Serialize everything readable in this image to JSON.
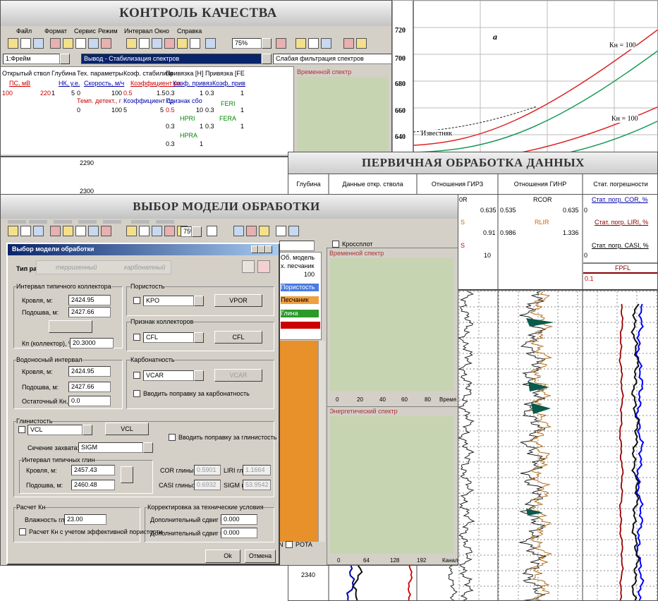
{
  "quality_control": {
    "title": "КОНТРОЛЬ КАЧЕСТВА",
    "menu": [
      "Файл",
      "Формат",
      "Сервис",
      "Режим",
      "Интервал",
      "Окно",
      "Справка"
    ],
    "zoom": "75%",
    "frame": "1:Фрейм",
    "output": "Вывод - Стабилизация спектров",
    "filter": "Слабая фильтрация спектров",
    "columns": [
      "Открытый ствол",
      "Глубина",
      "Тех. параметры",
      "Коэф. стабилиза",
      "Привязка [Н]",
      "Привязка [FE"
    ],
    "units": [
      "ПС, мВ",
      "НК, у.е.",
      "Скорость, м/ч",
      "Коэффициент ра",
      "Коэф. привяз",
      "Коэф. прив"
    ],
    "cells": [
      "100",
      "220",
      "1",
      "5",
      "0",
      "100",
      "0.5",
      "1.5",
      "0.3",
      "1",
      "0.3",
      "1",
      "Темп. детект., г",
      "Коэффициент сд",
      "Признак сбо",
      "FERI",
      "0",
      "100",
      "5",
      "5",
      "0.5",
      "10",
      "0.3",
      "1",
      "HPRI",
      "FERA",
      "0.3",
      "1",
      "0.3",
      "1",
      "HPRA",
      "0.3",
      "1"
    ],
    "spectrum_title": "Временной спектр",
    "depths": [
      "2290",
      "2300"
    ]
  },
  "reference_chart": {
    "yticks": [
      "720",
      "700",
      "680",
      "660",
      "640"
    ],
    "panel_label": "а",
    "curve_labels": [
      "Кн = 100",
      "Кн = 100"
    ],
    "lithology": "Известняк"
  },
  "primary_processing": {
    "title": "ПЕРВИЧНАЯ ОБРАБОТКА ДАННЫХ",
    "columns": [
      "Глубина",
      "Данные откр. ствола",
      "Отношения ГИРЗ",
      "Отношения ГИНР",
      "Стат. погрешности"
    ],
    "cells": [
      "0R",
      "RCOR",
      "Стат. погр. COR, %",
      "0.635",
      "0.535",
      "0.635",
      "0",
      "S",
      "RLIR",
      "Стат. погр. LIRI, %",
      "0.91",
      "0.986",
      "1.336",
      "S",
      "Стат. погр. CASI, %",
      "0",
      "10",
      "FPFL",
      "0.1"
    ],
    "depth": "2340"
  },
  "model_selection": {
    "title": "ВЫБОР МОДЕЛИ ОБРАБОТКИ",
    "zoom": "75%",
    "crossplot": "Кроссплот",
    "dialog": {
      "title": "Выбор модели обработки",
      "section_type": "Тип разреза:",
      "type_options": [
        "терригенный",
        "карбонатный"
      ],
      "collector": {
        "title": "Интервал типичного коллектора",
        "top_label": "Кровля, м:",
        "top": "2424.95",
        "bottom_label": "Подошва, м:",
        "bottom": "2427.66",
        "kp_label": "Кп (коллектор), %:",
        "kp": "20.3000"
      },
      "porosity": {
        "title": "Пористость",
        "curve": "KPO",
        "button": "VPOR"
      },
      "collector_flag": {
        "title": "Признак коллекторов",
        "curve": "CFL",
        "button": "CFL"
      },
      "aquifer": {
        "title": "Водоносный интервал",
        "top_label": "Кровля, м:",
        "top": "2424.95",
        "bottom_label": "Подошва, м:",
        "bottom": "2427.66",
        "residual_label": "Остаточный Кн, %:",
        "residual": "0.0"
      },
      "carbonate": {
        "title": "Карбонатность",
        "curve": "VCAR",
        "button": "VCAR",
        "correction": "Вводить поправку за карбонатность"
      },
      "shale": {
        "title": "Глинистость",
        "curve": "VCL",
        "button": "VCL",
        "correction": "Вводить поправку за глинистость",
        "capture_label": "Сечение захвата:",
        "capture": "SIGM",
        "interval_title": "Интервал типичных глин",
        "top_label": "Кровля, м:",
        "top": "2457.43",
        "bottom_label": "Подошва, м:",
        "bottom": "2460.48",
        "cor_label": "COR глины:",
        "cor": "0.5901",
        "liri_label": "LIRI глины:",
        "liri": "1.1664",
        "casi_label": "CASI глины:",
        "casi": "0.6932",
        "sigm_label": "SIGM глины:",
        "sigm": "53.9542"
      },
      "kn": {
        "title": "Расчет Кн",
        "moisture_label": "Влажность глин, %:",
        "moisture": "23.00",
        "effective": "Расчет Кн с учетом эффективной пористости"
      },
      "correction": {
        "title": "Корректировка за технические условия",
        "liri_label": "Дополнительный сдвиг LIRI:",
        "liri": "0.000",
        "casi_label": "Дополнительный сдвиг CASI:",
        "casi": "0.000"
      },
      "ok": "Ok",
      "cancel": "Отмена"
    },
    "model_list": [
      "Об. модель",
      "х. песчаник",
      "100",
      "Пористость",
      "Песчаник",
      "Глина"
    ],
    "bottom": [
      "AN",
      "POTA"
    ],
    "time_spectrum": {
      "title": "Временной спектр",
      "xticks": [
        "0",
        "20",
        "40",
        "60",
        "80",
        "Время"
      ]
    },
    "energy_spectrum": {
      "title": "Энергетический спектр",
      "xticks": [
        "0",
        "64",
        "128",
        "192",
        "Канал"
      ]
    }
  }
}
